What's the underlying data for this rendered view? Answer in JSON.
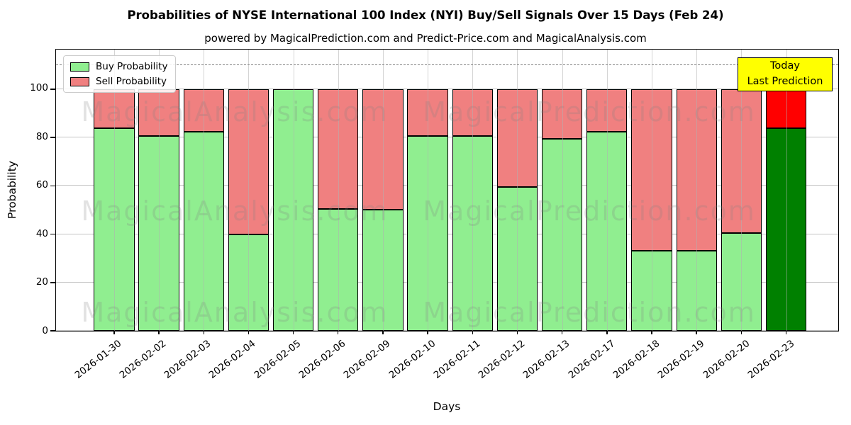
{
  "title": "Probabilities of NYSE International 100 Index (NYI) Buy/Sell Signals Over 15 Days (Feb 24)",
  "subtitle": "powered by MagicalPrediction.com and Predict-Price.com and MagicalAnalysis.com",
  "legend": {
    "buy_label": "Buy Probability",
    "sell_label": "Sell Probability"
  },
  "annotation": {
    "line1": "Today",
    "line2": "Last Prediction",
    "bg_color": "#ffff00"
  },
  "watermarks": {
    "left_text": "MagicalAnalysis.com",
    "right_text": "MagicalPrediction.com"
  },
  "colors": {
    "buy": "#90ee90",
    "sell": "#f08080",
    "buy_highlight": "#008000",
    "sell_highlight": "#ff0000",
    "bar_edge": "#000000",
    "grid": "#b0b0b0",
    "dashed_line": "#7f7f7f"
  },
  "chart_data": {
    "type": "bar",
    "stacked": true,
    "title": "Probabilities of NYSE International 100 Index (NYI) Buy/Sell Signals Over 15 Days (Feb 24)",
    "xlabel": "Days",
    "ylabel": "Probability",
    "ylim": [
      0,
      116.4
    ],
    "yticks": [
      0,
      20,
      40,
      60,
      80,
      100
    ],
    "grid": true,
    "legend_position": "upper left",
    "dashed_line_y": 110,
    "highlight_index": 15,
    "categories": [
      "2026-01-30",
      "2026-02-02",
      "2026-02-03",
      "2026-02-04",
      "2026-02-05",
      "2026-02-06",
      "2026-02-09",
      "2026-02-10",
      "2026-02-11",
      "2026-02-12",
      "2026-02-13",
      "2026-02-17",
      "2026-02-18",
      "2026-02-19",
      "2026-02-20",
      "2026-02-23"
    ],
    "series": [
      {
        "name": "Buy Probability",
        "values": [
          84,
          80.5,
          82.5,
          40,
          100,
          50.5,
          50,
          80.5,
          80.5,
          59.5,
          79.5,
          82.5,
          33,
          33,
          40.5,
          84
        ]
      },
      {
        "name": "Sell Probability",
        "values": [
          16,
          19.5,
          17.5,
          60,
          0,
          49.5,
          50,
          19.5,
          19.5,
          40.5,
          20.5,
          17.5,
          67,
          67,
          59.5,
          16
        ]
      }
    ]
  }
}
